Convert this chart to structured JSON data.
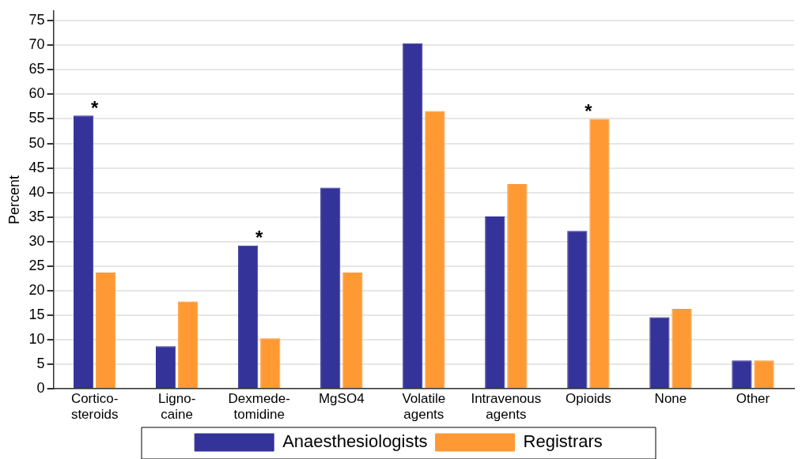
{
  "chart_data": {
    "type": "bar",
    "ylabel": "Percent",
    "categories": [
      "Cortico-\nsteroids",
      "Ligno-\ncaine",
      "Dexmede-\ntomidine",
      "MgSO4",
      "Volatile\nagents",
      "Intravenous\nagents",
      "Opioids",
      "None",
      "Other"
    ],
    "series": [
      {
        "name": "Anaesthesiologists",
        "color": "#333399",
        "values": [
          55.7,
          8.7,
          29.2,
          41.0,
          70.4,
          35.1,
          32.2,
          14.6,
          5.8
        ]
      },
      {
        "name": "Registrars",
        "color": "#ff9933",
        "values": [
          23.7,
          17.8,
          10.3,
          23.7,
          56.6,
          41.7,
          55.0,
          16.3,
          5.8
        ]
      }
    ],
    "ylim": [
      0,
      77
    ],
    "yticks": [
      0,
      5,
      10,
      15,
      20,
      25,
      30,
      35,
      40,
      45,
      50,
      55,
      60,
      65,
      70,
      75
    ],
    "annotations": [
      {
        "text": "*",
        "x": "Cortico-\nsteroids",
        "y": 55.7
      },
      {
        "text": "*",
        "x": "Dexmede-\ntomidine",
        "y": 29.2
      },
      {
        "text": "*",
        "x": "Opioids",
        "y": 55.0
      }
    ],
    "grid": "y",
    "legend": "bottom"
  }
}
